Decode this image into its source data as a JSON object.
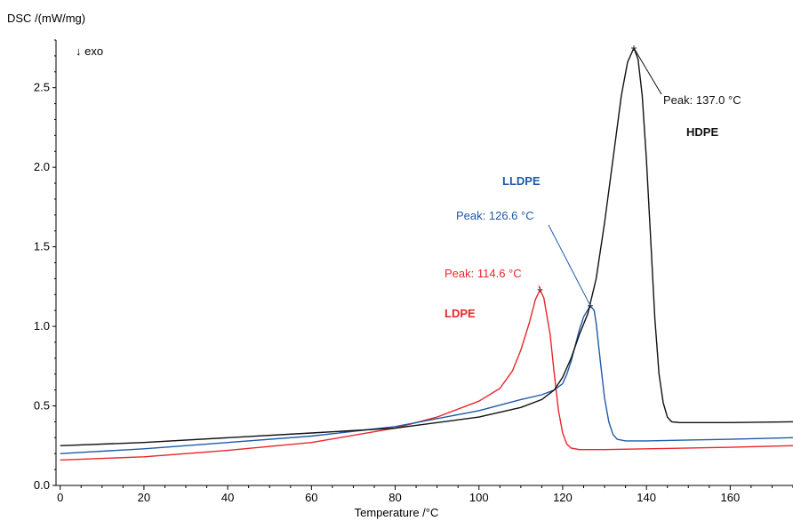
{
  "chart_data": {
    "type": "line",
    "ylabel": "DSC /(mW/mg)",
    "xlabel": "Temperature /°C",
    "direction_note": "↓ exo",
    "xlim": [
      -1,
      175
    ],
    "ylim": [
      0,
      2.8
    ],
    "xticks": [
      "0",
      "20",
      "40",
      "60",
      "80",
      "100",
      "120",
      "140",
      "160"
    ],
    "yticks": [
      "0.0",
      "0.5",
      "1.0",
      "1.5",
      "2.0",
      "2.5"
    ],
    "grid": false,
    "legend": "none",
    "series": [
      {
        "name": "LDPE",
        "color": "#e8262a",
        "peak": {
          "x": 114.6,
          "y": 1.23,
          "label": "Peak: 114.6 °C"
        },
        "points": [
          [
            0,
            0.16
          ],
          [
            20,
            0.18
          ],
          [
            40,
            0.22
          ],
          [
            60,
            0.27
          ],
          [
            80,
            0.36
          ],
          [
            90,
            0.43
          ],
          [
            100,
            0.53
          ],
          [
            105,
            0.61
          ],
          [
            108,
            0.72
          ],
          [
            110,
            0.85
          ],
          [
            112,
            1.02
          ],
          [
            113.5,
            1.17
          ],
          [
            114.6,
            1.23
          ],
          [
            115.5,
            1.18
          ],
          [
            117,
            0.95
          ],
          [
            118,
            0.7
          ],
          [
            119,
            0.47
          ],
          [
            120,
            0.33
          ],
          [
            121,
            0.26
          ],
          [
            122,
            0.235
          ],
          [
            124,
            0.225
          ],
          [
            130,
            0.225
          ],
          [
            140,
            0.23
          ],
          [
            160,
            0.24
          ],
          [
            175,
            0.25
          ]
        ]
      },
      {
        "name": "LLDPE",
        "color": "#1f5aa8",
        "peak": {
          "x": 126.6,
          "y": 1.13,
          "label": "Peak: 126.6 °C"
        },
        "points": [
          [
            0,
            0.2
          ],
          [
            20,
            0.23
          ],
          [
            40,
            0.27
          ],
          [
            60,
            0.31
          ],
          [
            80,
            0.37
          ],
          [
            100,
            0.47
          ],
          [
            110,
            0.54
          ],
          [
            115,
            0.57
          ],
          [
            118,
            0.6
          ],
          [
            120,
            0.64
          ],
          [
            121,
            0.7
          ],
          [
            122,
            0.78
          ],
          [
            123,
            0.88
          ],
          [
            124,
            0.98
          ],
          [
            125,
            1.06
          ],
          [
            126.6,
            1.13
          ],
          [
            127.5,
            1.1
          ],
          [
            128,
            1.02
          ],
          [
            129,
            0.78
          ],
          [
            130,
            0.55
          ],
          [
            131,
            0.4
          ],
          [
            132,
            0.32
          ],
          [
            133,
            0.29
          ],
          [
            135,
            0.28
          ],
          [
            140,
            0.28
          ],
          [
            160,
            0.29
          ],
          [
            175,
            0.3
          ]
        ]
      },
      {
        "name": "HDPE",
        "color": "#111111",
        "peak": {
          "x": 137.0,
          "y": 2.75,
          "label": "Peak: 137.0 °C"
        },
        "points": [
          [
            0,
            0.25
          ],
          [
            20,
            0.27
          ],
          [
            40,
            0.3
          ],
          [
            60,
            0.33
          ],
          [
            80,
            0.36
          ],
          [
            100,
            0.43
          ],
          [
            110,
            0.49
          ],
          [
            115,
            0.54
          ],
          [
            118,
            0.6
          ],
          [
            120,
            0.68
          ],
          [
            122,
            0.8
          ],
          [
            124,
            0.95
          ],
          [
            126,
            1.08
          ],
          [
            128,
            1.3
          ],
          [
            130,
            1.65
          ],
          [
            132,
            2.05
          ],
          [
            134,
            2.45
          ],
          [
            135.5,
            2.66
          ],
          [
            137,
            2.75
          ],
          [
            138,
            2.68
          ],
          [
            139,
            2.45
          ],
          [
            140,
            2.05
          ],
          [
            141,
            1.55
          ],
          [
            142,
            1.05
          ],
          [
            143,
            0.7
          ],
          [
            144,
            0.52
          ],
          [
            145,
            0.43
          ],
          [
            146,
            0.4
          ],
          [
            148,
            0.395
          ],
          [
            160,
            0.395
          ],
          [
            175,
            0.4
          ]
        ]
      }
    ],
    "annotations": [
      {
        "text": "Peak: 137.0 °C",
        "series": "HDPE"
      },
      {
        "text": "HDPE",
        "series": "HDPE"
      },
      {
        "text": "LLDPE",
        "series": "LLDPE"
      },
      {
        "text": "Peak: 126.6 °C",
        "series": "LLDPE"
      },
      {
        "text": "Peak: 114.6 °C",
        "series": "LDPE"
      },
      {
        "text": "LDPE",
        "series": "LDPE"
      }
    ]
  }
}
